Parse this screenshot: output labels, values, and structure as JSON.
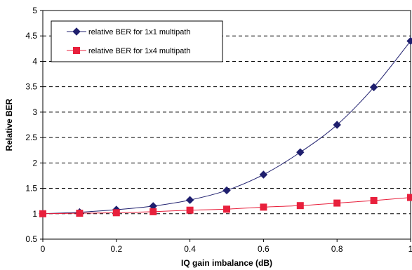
{
  "chart_data": {
    "type": "line",
    "title": "",
    "xlabel": "IQ gain imbalance (dB)",
    "ylabel": "Relative BER",
    "xlim": [
      0,
      1
    ],
    "ylim": [
      0.5,
      5
    ],
    "x_ticks": [
      "0",
      "0.2",
      "0.4",
      "0.6",
      "0.8",
      "1"
    ],
    "y_ticks": [
      "0.5",
      "1",
      "1.5",
      "2",
      "2.5",
      "3",
      "3.5",
      "4",
      "4.5",
      "5"
    ],
    "grid": "horizontal dashed",
    "legend_position": "top-left",
    "x": [
      0,
      0.1,
      0.2,
      0.3,
      0.4,
      0.5,
      0.6,
      0.7,
      0.8,
      0.9,
      1.0
    ],
    "series": [
      {
        "name": "relative BER for 1x1 multipath",
        "color": "#1f1f6e",
        "marker": "diamond",
        "values": [
          1.0,
          1.03,
          1.08,
          1.15,
          1.27,
          1.46,
          1.77,
          2.21,
          2.75,
          3.49,
          4.4
        ]
      },
      {
        "name": "relative BER for 1x4 multipath",
        "color": "#e8203c",
        "marker": "square",
        "values": [
          1.0,
          1.01,
          1.02,
          1.04,
          1.07,
          1.09,
          1.13,
          1.16,
          1.21,
          1.26,
          1.32
        ]
      }
    ]
  }
}
